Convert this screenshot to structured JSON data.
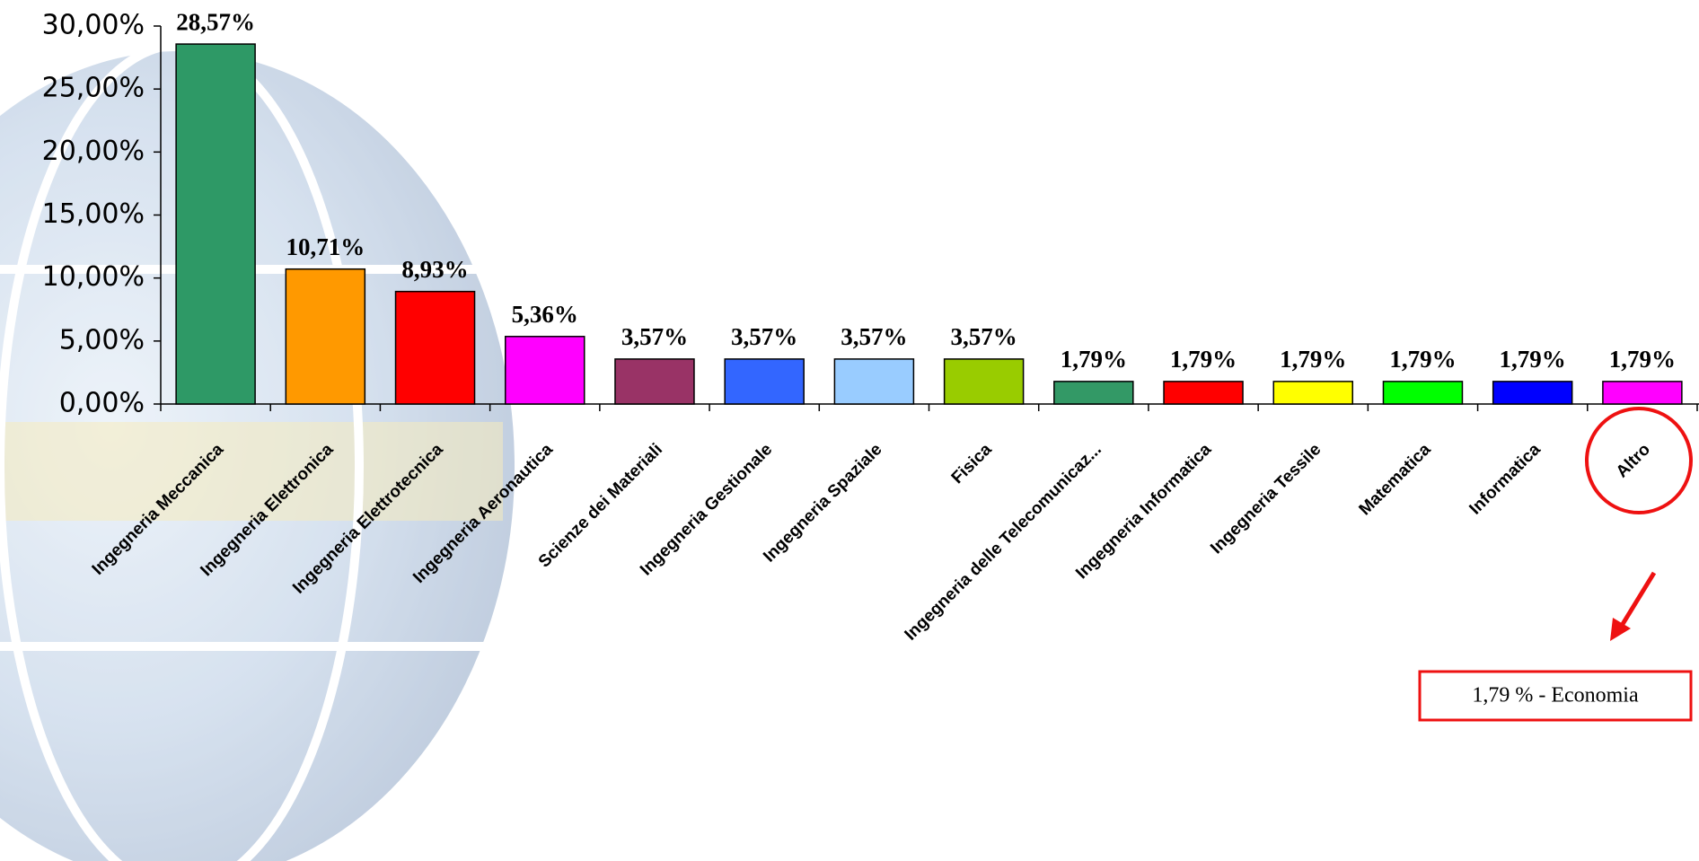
{
  "chart_data": {
    "type": "bar",
    "categories": [
      "Ingegneria Meccanica",
      "Ingegneria Elettronica",
      "Ingegneria Elettrotecnica",
      "Ingegneria Aeronautica",
      "Scienze dei Materiali",
      "Ingegneria Gestionale",
      "Ingegneria Spaziale",
      "Fisica",
      "Ingegneria delle Telecomunicaz...",
      "Ingegneria Informatica",
      "Ingegneria Tessile",
      "Matematica",
      "Informatica",
      "Altro"
    ],
    "values": [
      28.57,
      10.71,
      8.93,
      5.36,
      3.57,
      3.57,
      3.57,
      3.57,
      1.79,
      1.79,
      1.79,
      1.79,
      1.79,
      1.79
    ],
    "value_labels": [
      "28,57%",
      "10,71%",
      "8,93%",
      "5,36%",
      "3,57%",
      "3,57%",
      "3,57%",
      "3,57%",
      "1,79%",
      "1,79%",
      "1,79%",
      "1,79%",
      "1,79%",
      "1,79%"
    ],
    "colors": [
      "#2e9966",
      "#ff9900",
      "#ff0000",
      "#ff00ff",
      "#993366",
      "#3366ff",
      "#99ccff",
      "#99cc00",
      "#339966",
      "#ff0000",
      "#ffff00",
      "#00ff00",
      "#0000ff",
      "#ff00ff"
    ],
    "ylim": [
      0,
      30
    ],
    "yticks": [
      {
        "value": 0,
        "label": "0,00%"
      },
      {
        "value": 5,
        "label": "5,00%"
      },
      {
        "value": 10,
        "label": "10,00%"
      },
      {
        "value": 15,
        "label": "15,00%"
      },
      {
        "value": 20,
        "label": "20,00%"
      },
      {
        "value": 25,
        "label": "25,00%"
      },
      {
        "value": 30,
        "label": "30,00%"
      }
    ],
    "annotation": "1,79 % - Economia"
  }
}
